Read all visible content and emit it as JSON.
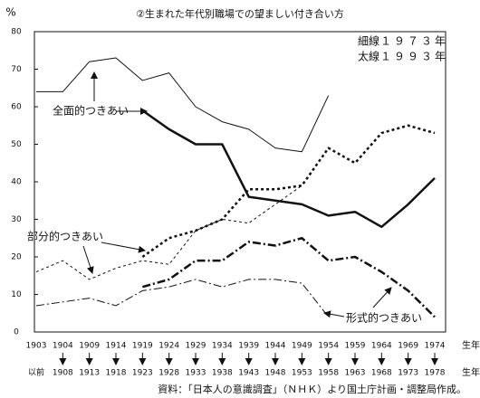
{
  "chart_data": {
    "type": "line",
    "title": "②生まれた年代別職場での望ましい付き合い方",
    "y_unit": "%",
    "categories": [
      "1903",
      "1904",
      "1909",
      "1914",
      "1919",
      "1924",
      "1929",
      "1934",
      "1939",
      "1944",
      "1949",
      "1954",
      "1959",
      "1964",
      "1969",
      "1974"
    ],
    "categories_end": [
      "以前",
      "1908",
      "1913",
      "1918",
      "1923",
      "1928",
      "1933",
      "1938",
      "1943",
      "1948",
      "1953",
      "1958",
      "1963",
      "1968",
      "1973",
      "1978"
    ],
    "x_unit": "生年",
    "ylim": [
      0,
      80
    ],
    "yticks": [
      0,
      10,
      20,
      30,
      40,
      50,
      60,
      70,
      80
    ],
    "legend": [
      {
        "kind": "細線",
        "year": "１９７３年",
        "width": 1
      },
      {
        "kind": "太線",
        "year": "１９９３年",
        "width": 2.5
      }
    ],
    "series": [
      {
        "name": "全面的つきあい",
        "color": "#111111",
        "dash": "none",
        "values_1973": [
          64,
          64,
          72,
          73,
          67,
          69,
          60,
          56,
          54,
          49,
          48,
          63,
          null,
          null,
          null,
          null
        ],
        "values_1993": [
          null,
          null,
          null,
          null,
          59,
          54,
          50,
          50,
          36,
          35,
          34,
          31,
          32,
          28,
          34,
          41
        ]
      },
      {
        "name": "部分的つきあい",
        "color": "#111111",
        "dash": "3,3",
        "values_1973": [
          16,
          19,
          14,
          17,
          19,
          18,
          27,
          30,
          29,
          34,
          39,
          null,
          null,
          null,
          null,
          null
        ],
        "values_1993": [
          null,
          null,
          null,
          null,
          20,
          25,
          27,
          30,
          38,
          38,
          39,
          49,
          45,
          53,
          55,
          53
        ]
      },
      {
        "name": "形式的つきあい",
        "color": "#111111",
        "dash": "9,3,2,3",
        "values_1973": [
          7,
          8,
          9,
          7,
          11,
          12,
          14,
          12,
          14,
          14,
          13,
          4,
          null,
          null,
          null,
          null
        ],
        "values_1993": [
          null,
          null,
          null,
          null,
          12,
          14,
          19,
          19,
          24,
          23,
          25,
          19,
          20,
          16,
          11,
          4
        ]
      }
    ],
    "source": "資料：「日本人の意識調査」（ＮＨＫ）より国土庁計画・調整局作成。"
  }
}
